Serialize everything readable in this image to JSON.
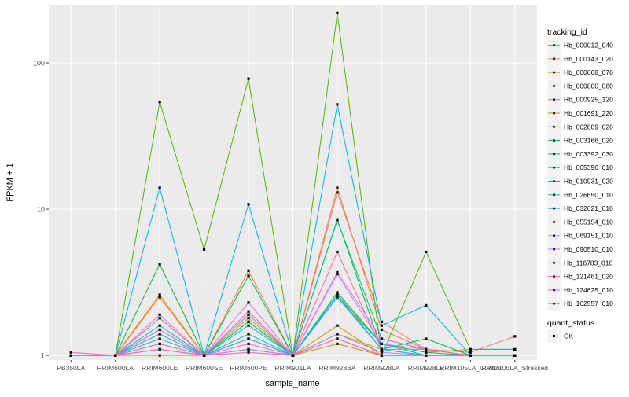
{
  "chart_data": {
    "type": "line",
    "xlabel": "sample_name",
    "ylabel": "FPKM + 1",
    "y_scale": "log10",
    "ylim": [
      0.93,
      250
    ],
    "y_ticks": [
      1,
      10,
      100
    ],
    "grid": true,
    "legend_position": "right",
    "categories": [
      "PB350LA",
      "RRIM600LA",
      "RRIM600LE",
      "RRIM600SE",
      "RRIM600PE",
      "RRIM901LA",
      "RRIM928BA",
      "RRIM928LA",
      "RRIM928LE",
      "RRIM105LA_Control",
      "RRIM105LA_Stressed"
    ],
    "series_legend_title": "tracking_id",
    "series": [
      {
        "name": "Hb_000012_040",
        "color": "#F8766D",
        "values": [
          1.0,
          1.0,
          1.0,
          1.0,
          1.1,
          1.0,
          13.0,
          1.7,
          1.1,
          1.05,
          1.35
        ]
      },
      {
        "name": "Hb_000143_020",
        "color": "#EF7F49",
        "values": [
          1.0,
          1.0,
          2.5,
          1.0,
          3.8,
          1.0,
          14.0,
          1.5,
          1.1,
          1.0,
          1.0
        ]
      },
      {
        "name": "Hb_000668_070",
        "color": "#E38900",
        "values": [
          1.0,
          1.0,
          2.6,
          1.0,
          1.7,
          1.0,
          1.6,
          1.0,
          1.0,
          1.0,
          1.0
        ]
      },
      {
        "name": "Hb_000800_060",
        "color": "#D39200",
        "values": [
          1.0,
          1.0,
          1.1,
          1.0,
          1.1,
          1.0,
          1.2,
          1.0,
          1.0,
          1.0,
          1.0
        ]
      },
      {
        "name": "Hb_000925_120",
        "color": "#C09B00",
        "values": [
          1.0,
          1.0,
          1.2,
          1.0,
          1.3,
          1.0,
          1.4,
          1.1,
          1.0,
          1.0,
          1.0
        ]
      },
      {
        "name": "Hb_001691_220",
        "color": "#A8A400",
        "values": [
          1.0,
          1.0,
          1.4,
          1.0,
          1.8,
          1.0,
          2.6,
          1.2,
          1.05,
          1.1,
          1.1
        ]
      },
      {
        "name": "Hb_002809_020",
        "color": "#53B400",
        "values": [
          1.0,
          1.0,
          54.0,
          5.3,
          78.0,
          1.0,
          220.0,
          1.0,
          5.1,
          1.1,
          1.1
        ]
      },
      {
        "name": "Hb_003166_020",
        "color": "#00BA38",
        "values": [
          1.0,
          1.0,
          4.2,
          1.0,
          3.5,
          1.0,
          8.5,
          1.1,
          1.3,
          1.0,
          1.0
        ]
      },
      {
        "name": "Hb_003392_030",
        "color": "#00BD5F",
        "values": [
          1.0,
          1.0,
          1.8,
          1.0,
          1.9,
          1.0,
          2.7,
          1.2,
          1.05,
          1.0,
          1.0
        ]
      },
      {
        "name": "Hb_005396_010",
        "color": "#00C08B",
        "values": [
          1.0,
          1.0,
          1.5,
          1.0,
          1.7,
          1.0,
          8.4,
          1.3,
          1.1,
          1.0,
          1.0
        ]
      },
      {
        "name": "Hb_010931_020",
        "color": "#00BFB3",
        "values": [
          1.0,
          1.0,
          1.3,
          1.0,
          1.4,
          1.0,
          2.5,
          1.2,
          1.0,
          1.0,
          1.0
        ]
      },
      {
        "name": "Hb_026650_010",
        "color": "#00BCD8",
        "values": [
          1.0,
          1.0,
          1.6,
          1.0,
          1.6,
          1.0,
          2.6,
          1.1,
          1.0,
          1.0,
          1.0
        ]
      },
      {
        "name": "Hb_032621_010",
        "color": "#00B0F6",
        "values": [
          1.0,
          1.0,
          14.0,
          1.0,
          10.8,
          1.0,
          52.0,
          1.6,
          2.2,
          1.0,
          1.0
        ]
      },
      {
        "name": "Hb_055154_010",
        "color": "#35A2FF",
        "values": [
          1.0,
          1.0,
          1.4,
          1.0,
          1.3,
          1.0,
          2.5,
          1.1,
          1.0,
          1.0,
          1.0
        ]
      },
      {
        "name": "Hb_069151_010",
        "color": "#9590FF",
        "values": [
          1.0,
          1.0,
          1.1,
          1.0,
          1.1,
          1.0,
          1.4,
          1.05,
          1.0,
          1.0,
          1.0
        ]
      },
      {
        "name": "Hb_090510_010",
        "color": "#C77CFF",
        "values": [
          1.0,
          1.0,
          1.9,
          1.0,
          1.9,
          1.0,
          3.6,
          1.2,
          1.1,
          1.0,
          1.0
        ]
      },
      {
        "name": "Hb_116783_010",
        "color": "#E76BF3",
        "values": [
          1.0,
          1.0,
          1.5,
          1.0,
          2.3,
          1.0,
          3.7,
          1.3,
          1.1,
          1.0,
          1.0
        ]
      },
      {
        "name": "Hb_121461_020",
        "color": "#FA62DB",
        "values": [
          1.0,
          1.0,
          1.2,
          1.0,
          1.2,
          1.0,
          1.3,
          1.0,
          1.0,
          1.0,
          1.0
        ]
      },
      {
        "name": "Hb_124625_010",
        "color": "#FF62BC",
        "values": [
          1.05,
          1.0,
          1.1,
          1.0,
          1.05,
          1.0,
          1.3,
          1.0,
          1.0,
          1.0,
          1.0
        ]
      },
      {
        "name": "Hb_162557_010",
        "color": "#FF6C91",
        "values": [
          1.0,
          1.0,
          1.8,
          1.0,
          2.0,
          1.0,
          5.1,
          1.1,
          1.1,
          1.0,
          1.0
        ]
      }
    ],
    "shape_legend": {
      "title": "quant_status",
      "items": [
        "OK"
      ]
    }
  }
}
